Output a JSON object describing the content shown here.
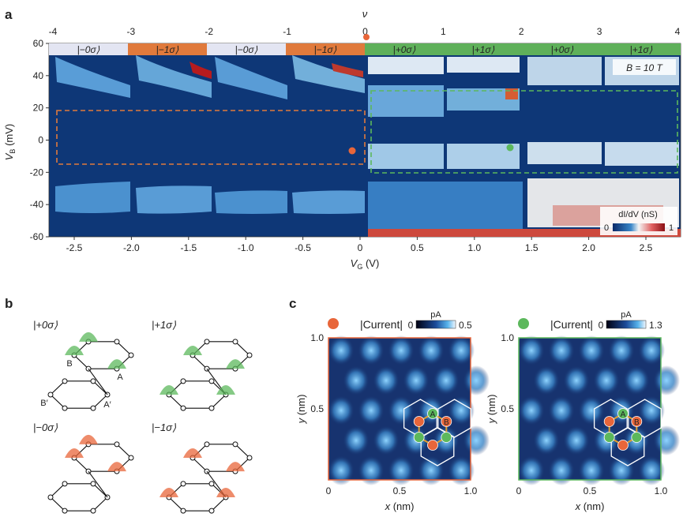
{
  "panel_a": {
    "label": "a",
    "top_axis": {
      "label": "ν",
      "ticks": [
        "-4",
        "-3",
        "-2",
        "-1",
        "0",
        "1",
        "2",
        "3",
        "4"
      ]
    },
    "x_axis": {
      "label": "V",
      "label_sub": "G",
      "unit": " (V)",
      "ticks": [
        "-2.5",
        "-2.0",
        "-1.5",
        "-1.0",
        "-0.5",
        "0",
        "0.5",
        "1.0",
        "1.5",
        "2.0",
        "2.5"
      ]
    },
    "y_axis": {
      "label": "V",
      "label_sub": "B",
      "unit": " (mV)",
      "ticks": [
        "60",
        "40",
        "20",
        "0",
        "-20",
        "-40",
        "-60"
      ]
    },
    "state_bar": [
      {
        "text": "|−0σ⟩",
        "fill": "#e3e5f2",
        "color": "#222222"
      },
      {
        "text": "|−1σ⟩",
        "fill": "#e07a3c",
        "color": "#222222"
      },
      {
        "text": "|−0σ⟩",
        "fill": "#e3e5f2",
        "color": "#222222"
      },
      {
        "text": "|−1σ⟩",
        "fill": "#e07a3c",
        "color": "#222222"
      },
      {
        "text": "|+0σ⟩",
        "fill": "#5fb05a",
        "color": "#222222"
      },
      {
        "text": "|+1σ⟩",
        "fill": "#5fb05a",
        "color": "#222222"
      },
      {
        "text": "|+0σ⟩",
        "fill": "#5fb05a",
        "color": "#222222"
      },
      {
        "text": "|+1σ⟩",
        "fill": "#5fb05a",
        "color": "#222222"
      }
    ],
    "field_label": "B = 10 T",
    "colorbar": {
      "label": "dI/dV (nS)",
      "min": "0",
      "max": "1"
    },
    "marker_colors": {
      "orange": "#e8663a",
      "green": "#5cb85c"
    }
  },
  "panel_b": {
    "label": "b",
    "states": [
      {
        "text": "|+0σ⟩",
        "color": "#5cb85c"
      },
      {
        "text": "|+1σ⟩",
        "color": "#5cb85c"
      },
      {
        "text": "|−0σ⟩",
        "color": "#e8663a"
      },
      {
        "text": "|−1σ⟩",
        "color": "#e8663a"
      }
    ],
    "site_labels": [
      "B",
      "A",
      "B′",
      "A′"
    ]
  },
  "panel_c": {
    "label": "c",
    "maps": [
      {
        "title": "|Current|",
        "cb_min": "0",
        "cb_max": "0.5",
        "unit": "pA",
        "frame": "#e8663a"
      },
      {
        "title": "|Current|",
        "cb_min": "0",
        "cb_max": "1.3",
        "unit": "pA",
        "frame": "#5cb85c"
      }
    ],
    "x_axis": {
      "label": "x",
      "unit": " (nm)",
      "ticks": [
        "0",
        "0.5",
        "1.0"
      ]
    },
    "y_axis": {
      "label": "y",
      "unit": " (nm)",
      "ticks": [
        "1.0",
        "0.5",
        "0"
      ]
    },
    "site_labels": [
      "A",
      "B"
    ]
  }
}
